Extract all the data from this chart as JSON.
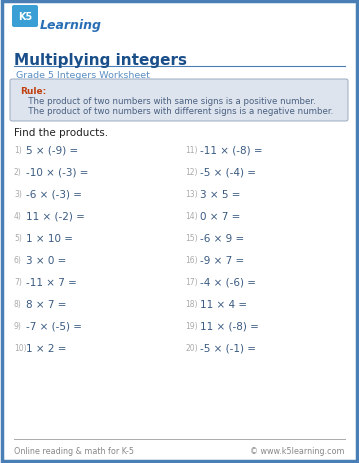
{
  "title": "Multiplying integers",
  "subtitle": "Grade 5 Integers Worksheet",
  "rule_label": "Rule:",
  "rule_line1": "   The product of two numbers with same signs is a positive number.",
  "rule_line2": "   The product of two numbers with different signs is a negative number.",
  "instruction": "Find the products.",
  "problems_left": [
    [
      "1)",
      "5 × (-9) ="
    ],
    [
      "2)",
      "-10 × (-3) ="
    ],
    [
      "3)",
      "-6 × (-3) ="
    ],
    [
      "4)",
      "11 × (-2) ="
    ],
    [
      "5)",
      "1 × 10 ="
    ],
    [
      "6)",
      "3 × 0 ="
    ],
    [
      "7)",
      "-11 × 7 ="
    ],
    [
      "8)",
      "8 × 7 ="
    ],
    [
      "9)",
      "-7 × (-5) ="
    ],
    [
      "10)",
      "1 × 2 ="
    ]
  ],
  "problems_right": [
    [
      "11)",
      "-11 × (-8) ="
    ],
    [
      "12)",
      "-5 × (-4) ="
    ],
    [
      "13)",
      "3 × 5 ="
    ],
    [
      "14)",
      "0 × 7 ="
    ],
    [
      "15)",
      "-6 × 9 ="
    ],
    [
      "16)",
      "-9 × 7 ="
    ],
    [
      "17)",
      "-4 × (-6) ="
    ],
    [
      "18)",
      "11 × 4 ="
    ],
    [
      "19)",
      "11 × (-8) ="
    ],
    [
      "20)",
      "-5 × (-1) ="
    ]
  ],
  "footer_left": "Online reading & math for K-5",
  "footer_right": "© www.k5learning.com",
  "bg_color": "#ffffff",
  "outer_border_color": "#4a7fb5",
  "title_color": "#1a4f8a",
  "subtitle_color": "#5b8fc4",
  "rule_box_fill": "#dde4ee",
  "rule_box_border": "#9aaac0",
  "rule_label_color": "#c04010",
  "rule_text_color": "#4a6080",
  "problem_num_color": "#aaaaaa",
  "problem_text_color": "#3a5a80",
  "instruction_color": "#222222",
  "footer_color": "#888888",
  "title_underline_color": "#4a7fb5",
  "logo_k5_bg": "#4a9fd5",
  "logo_text_color": "#2a6fb5"
}
